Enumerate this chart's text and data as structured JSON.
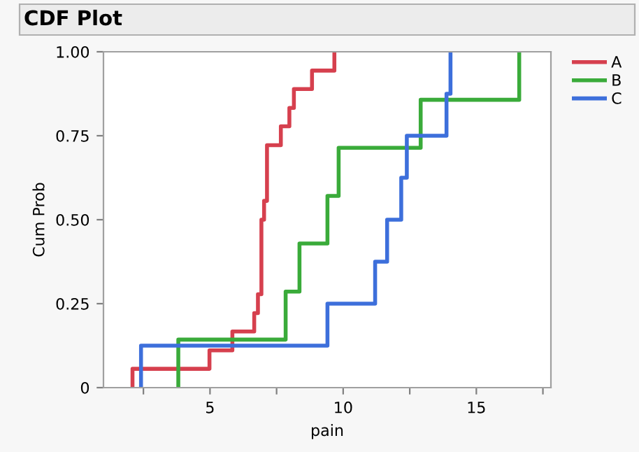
{
  "chart_data": {
    "type": "step",
    "title": "CDF Plot",
    "xlabel": "pain",
    "ylabel": "Cum Prob",
    "series": [
      {
        "name": "A",
        "color": "#d6404e",
        "x": [
          2.09,
          2.09,
          4.98,
          5.84,
          6.66,
          6.8,
          6.93,
          7.03,
          7.14,
          7.66,
          7.98,
          8.15,
          8.83,
          9.67
        ],
        "values": [
          0,
          0.056,
          0.111,
          0.167,
          0.222,
          0.278,
          0.5,
          0.556,
          0.722,
          0.778,
          0.833,
          0.889,
          0.944,
          1.0
        ]
      },
      {
        "name": "B",
        "color": "#3aab3a",
        "x": [
          3.81,
          3.81,
          7.84,
          8.36,
          9.41,
          9.83,
          12.91,
          16.61
        ],
        "values": [
          0,
          0.143,
          0.286,
          0.429,
          0.571,
          0.714,
          0.857,
          1.0
        ]
      },
      {
        "name": "C",
        "color": "#3d6fdb",
        "x": [
          2.41,
          2.41,
          9.41,
          11.2,
          11.65,
          12.18,
          12.39,
          13.88,
          14.03
        ],
        "values": [
          0,
          0.125,
          0.25,
          0.375,
          0.5,
          0.625,
          0.75,
          0.875,
          1.0
        ]
      }
    ],
    "xlim": [
      1.0,
      17.8
    ],
    "ylim": [
      0,
      1
    ],
    "xticks": [
      {
        "value": 2.5,
        "label": null
      },
      5,
      {
        "value": 7.5,
        "label": null
      },
      10,
      {
        "value": 12.5,
        "label": null
      },
      15,
      {
        "value": 17.5,
        "label": null
      }
    ],
    "yticks": [
      0,
      {
        "value": 0.25,
        "label": "0.25"
      },
      {
        "value": 0.5,
        "label": "0.50"
      },
      {
        "value": 0.75,
        "label": "0.75"
      },
      {
        "value": 1.0,
        "label": "1.00"
      }
    ],
    "legend": "top right",
    "grid": false
  }
}
